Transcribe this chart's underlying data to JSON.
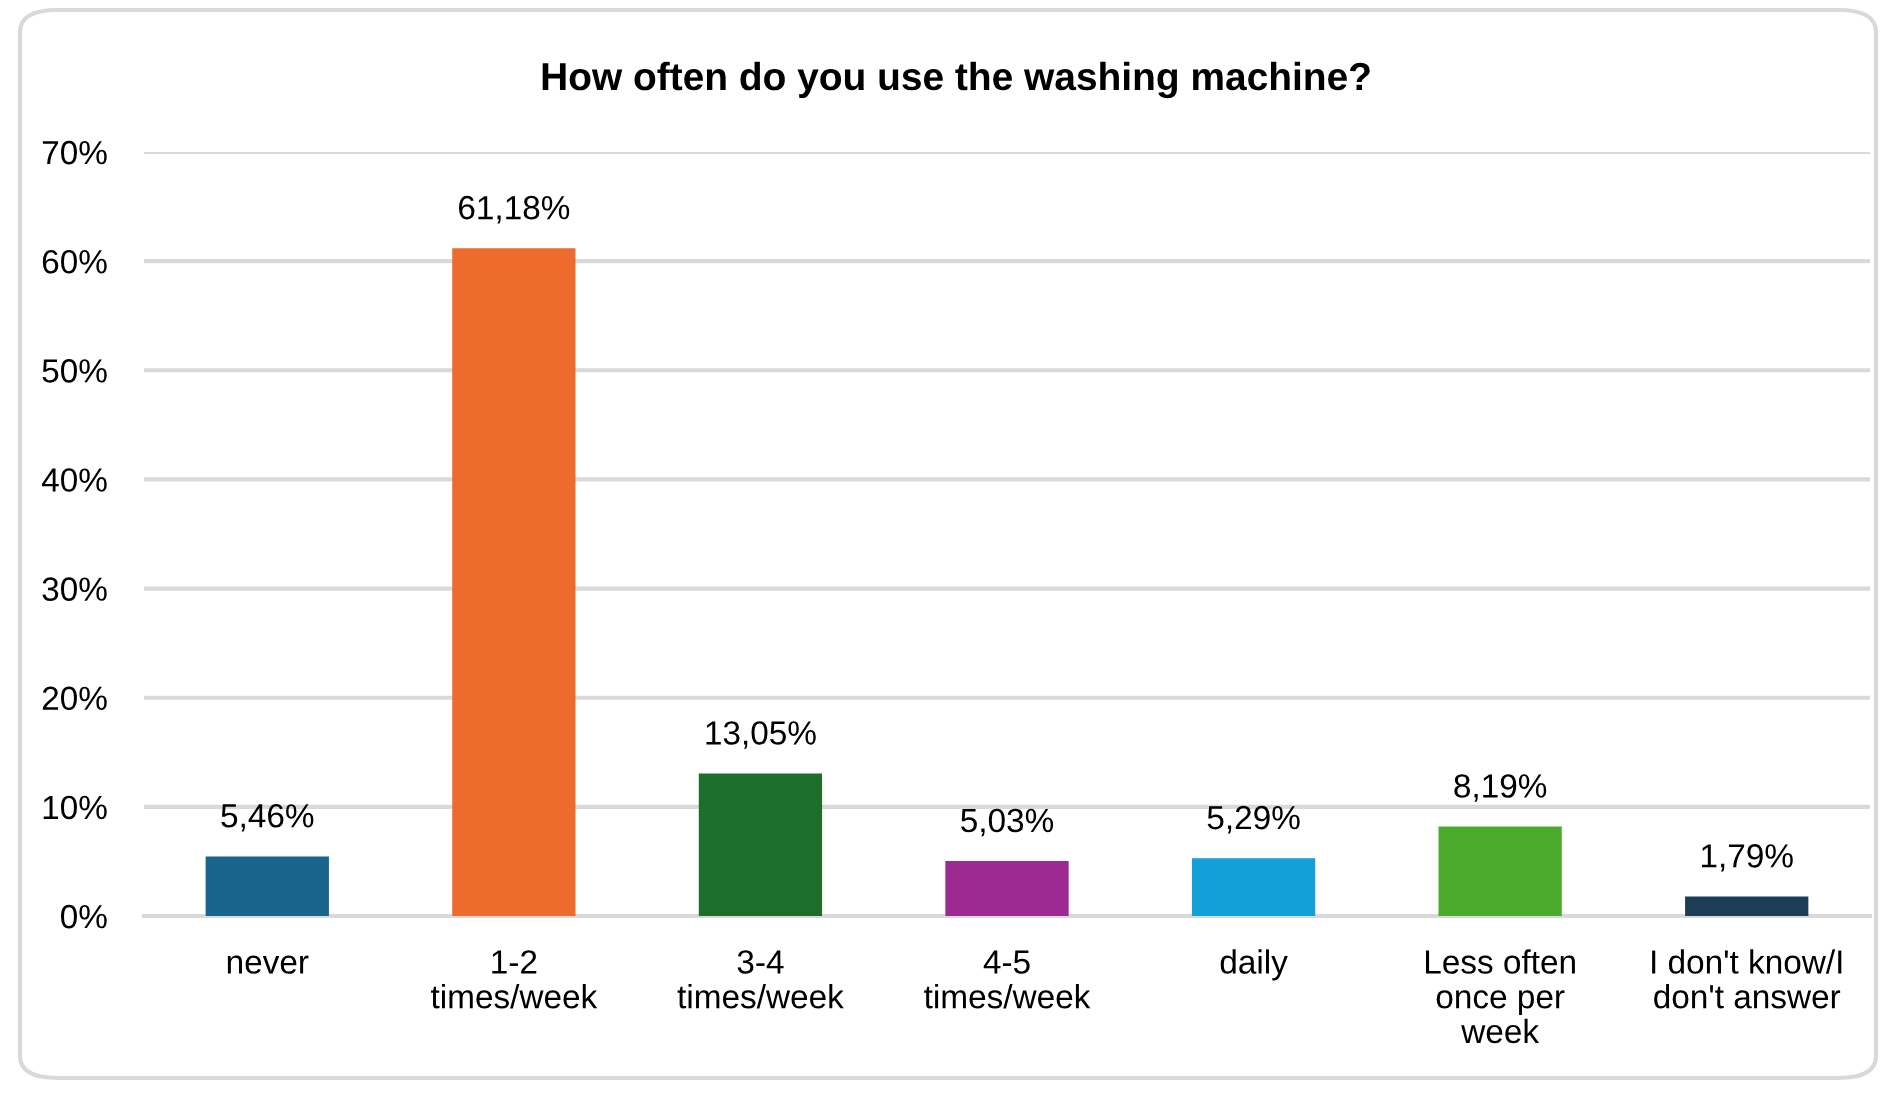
{
  "chart_data": {
    "type": "bar",
    "title": "How often do you use the washing machine?",
    "categories": [
      "never",
      "1-2\ntimes/week",
      "3-4\ntimes/week",
      "4-5\ntimes/week",
      "daily",
      "Less often\nonce per\nweek",
      "I don't know/I\ndon't answer"
    ],
    "values": [
      5.46,
      61.18,
      13.05,
      5.03,
      5.29,
      8.19,
      1.79
    ],
    "value_labels": [
      "5,46%",
      "61,18%",
      "13,05%",
      "5,03%",
      "5,29%",
      "8,19%",
      "1,79%"
    ],
    "colors": [
      "#18648c",
      "#ec6b2d",
      "#1c6e2a",
      "#9c2a90",
      "#139fd8",
      "#4aab2c",
      "#1c3d55"
    ],
    "ylim": [
      0,
      70
    ],
    "yticks": [
      {
        "value": 0,
        "label": "0%"
      },
      {
        "value": 10,
        "label": "10%"
      },
      {
        "value": 20,
        "label": "20%"
      },
      {
        "value": 30,
        "label": "30%"
      },
      {
        "value": 40,
        "label": "40%"
      },
      {
        "value": 50,
        "label": "50%"
      },
      {
        "value": 60,
        "label": "60%"
      },
      {
        "value": 70,
        "label": "70%"
      }
    ],
    "grid": "y"
  }
}
